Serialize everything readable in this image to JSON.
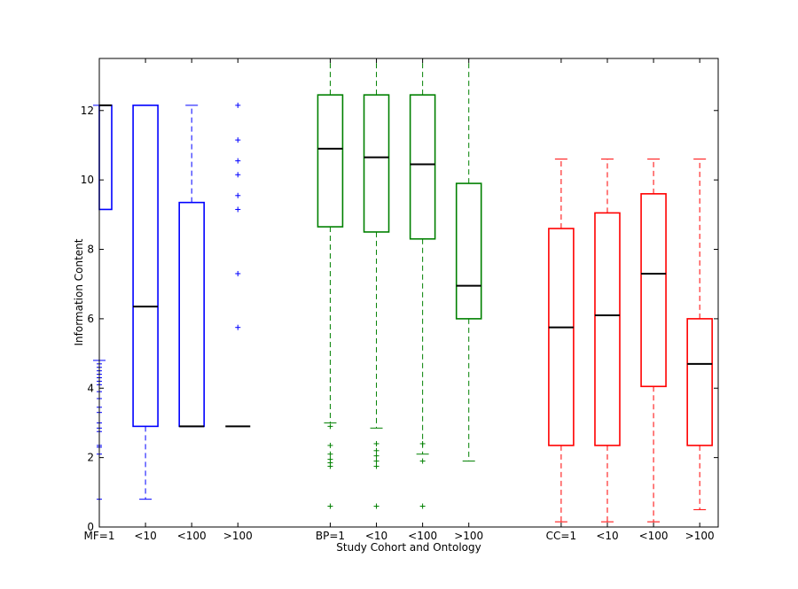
{
  "chart_data": {
    "type": "boxplot",
    "title": "",
    "xlabel": "Study Cohort and Ontology",
    "ylabel": "Information Content",
    "ylim": [
      0,
      13.5
    ],
    "yticks": [
      0,
      2,
      4,
      6,
      8,
      10,
      12
    ],
    "grid": false,
    "legend": "none",
    "categories": [
      "MF=1",
      "<10",
      "<100",
      ">100",
      "BP=1",
      "<10",
      "<100",
      ">100",
      "CC=1",
      "<10",
      "<100",
      ">100"
    ],
    "groups": [
      {
        "name": "MF",
        "color": "#0000ff"
      },
      {
        "name": "BP",
        "color": "#008000"
      },
      {
        "name": "CC",
        "color": "#ff0000"
      }
    ],
    "boxes": [
      {
        "label": "MF=1",
        "group": 0,
        "x": 1,
        "whislo": 4.8,
        "q1": 9.15,
        "med": 12.15,
        "q3": 12.15,
        "whishi": 12.15,
        "fliers": [
          4.7,
          4.6,
          4.5,
          4.4,
          4.3,
          4.2,
          4.1,
          3.9,
          3.7,
          3.45,
          3.3,
          3.0,
          2.85,
          2.75,
          2.35,
          2.3,
          2.1,
          0.8
        ]
      },
      {
        "label": "<10",
        "group": 0,
        "x": 2,
        "whislo": 0.8,
        "q1": 2.9,
        "med": 6.35,
        "q3": 12.15,
        "whishi": 12.15,
        "fliers": []
      },
      {
        "label": "<100",
        "group": 0,
        "x": 3,
        "whislo": 2.9,
        "q1": 2.9,
        "med": 2.9,
        "q3": 9.35,
        "whishi": 12.15,
        "fliers": []
      },
      {
        "label": ">100",
        "group": 0,
        "x": 4,
        "whislo": 2.9,
        "q1": 2.9,
        "med": 2.9,
        "q3": 2.9,
        "whishi": 2.9,
        "fliers": [
          12.15,
          11.15,
          10.55,
          10.15,
          9.55,
          9.15,
          7.3,
          5.75
        ]
      },
      {
        "label": "BP=1",
        "group": 1,
        "x": 6,
        "whislo": 3.0,
        "q1": 8.65,
        "med": 10.9,
        "q3": 12.45,
        "whishi": 13.5,
        "fliers": [
          2.9,
          2.35,
          2.1,
          1.95,
          1.85,
          1.75,
          0.6
        ]
      },
      {
        "label": "<10",
        "group": 1,
        "x": 7,
        "whislo": 2.85,
        "q1": 8.5,
        "med": 10.65,
        "q3": 12.45,
        "whishi": 13.5,
        "fliers": [
          2.4,
          2.2,
          2.05,
          1.9,
          1.75,
          0.6
        ]
      },
      {
        "label": "<100",
        "group": 1,
        "x": 8,
        "whislo": 2.1,
        "q1": 8.3,
        "med": 10.45,
        "q3": 12.45,
        "whishi": 13.5,
        "fliers": [
          2.4,
          1.9,
          0.6
        ]
      },
      {
        "label": ">100",
        "group": 1,
        "x": 9,
        "whislo": 1.9,
        "q1": 6.0,
        "med": 6.95,
        "q3": 9.9,
        "whishi": 13.5,
        "fliers": []
      },
      {
        "label": "CC=1",
        "group": 2,
        "x": 11,
        "whislo": 0.15,
        "q1": 2.35,
        "med": 5.75,
        "q3": 8.6,
        "whishi": 10.6,
        "fliers": []
      },
      {
        "label": "<10",
        "group": 2,
        "x": 12,
        "whislo": 0.15,
        "q1": 2.35,
        "med": 6.1,
        "q3": 9.05,
        "whishi": 10.6,
        "fliers": []
      },
      {
        "label": "<100",
        "group": 2,
        "x": 13,
        "whislo": 0.15,
        "q1": 4.05,
        "med": 7.3,
        "q3": 9.6,
        "whishi": 10.6,
        "fliers": []
      },
      {
        "label": ">100",
        "group": 2,
        "x": 14,
        "whislo": 0.5,
        "q1": 2.35,
        "med": 4.7,
        "q3": 6.0,
        "whishi": 10.6,
        "fliers": []
      }
    ]
  }
}
